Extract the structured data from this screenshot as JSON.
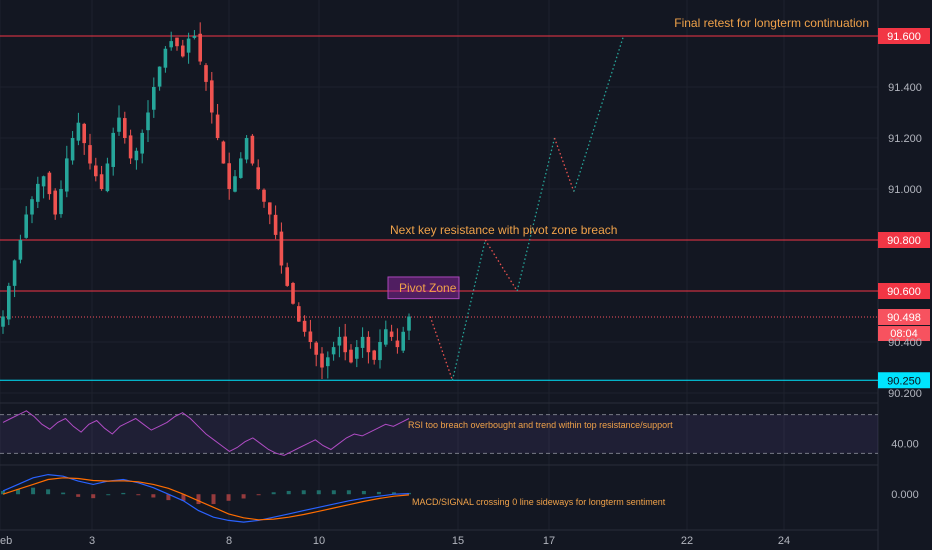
{
  "chart_data": {
    "type": "candlestick",
    "price_axis": {
      "ticks": [
        "91.400",
        "91.200",
        "91.000",
        "90.400",
        "90.200"
      ],
      "range": [
        90.17,
        91.62
      ]
    },
    "time_axis": {
      "ticks": [
        "eb",
        "3",
        "8",
        "10",
        "15",
        "17",
        "22",
        "24"
      ]
    },
    "levels": [
      {
        "value": 91.6,
        "label": "91.600",
        "color": "#f23645"
      },
      {
        "value": 90.8,
        "label": "90.800",
        "color": "#f23645"
      },
      {
        "value": 90.6,
        "label": "90.600",
        "color": "#f23645"
      },
      {
        "value": 90.25,
        "label": "90.250",
        "color": "#00e5ff"
      }
    ],
    "current_price": {
      "value": 90.498,
      "label": "90.498",
      "countdown": "08:04",
      "color": "#f7525f"
    },
    "pivot_zone": {
      "low": 90.57,
      "high": 90.655,
      "label": "Pivot Zone"
    },
    "annotations": {
      "final_retest": "Final retest for longterm continuation",
      "next_resistance": "Next key resistance with pivot zone breach",
      "rsi_note": "RSI too breach overbought and trend within top resistance/support",
      "macd_note": "MACD/SIGNAL crossing 0 line sideways for longterm sentiment"
    },
    "projected_path": [
      {
        "t": 14.0,
        "p": 90.5
      },
      {
        "t": 14.8,
        "p": 90.25
      },
      {
        "t": 15.6,
        "p": 90.8
      },
      {
        "t": 16.3,
        "p": 90.6
      },
      {
        "t": 17.2,
        "p": 91.2
      },
      {
        "t": 17.9,
        "p": 90.99
      },
      {
        "t": 19.7,
        "p": 91.6
      }
    ],
    "candles_close": [
      90.5,
      90.62,
      90.72,
      90.8,
      90.9,
      90.96,
      91.02,
      91.05,
      90.98,
      90.9,
      91.0,
      91.12,
      91.2,
      91.26,
      91.18,
      91.1,
      91.05,
      91.0,
      91.1,
      91.22,
      91.28,
      91.2,
      91.12,
      91.15,
      91.22,
      91.3,
      91.4,
      91.48,
      91.55,
      91.58,
      91.56,
      91.52,
      91.59,
      91.6,
      91.5,
      91.42,
      91.3,
      91.2,
      91.1,
      91.0,
      91.05,
      91.12,
      91.2,
      91.1,
      91.0,
      90.95,
      90.9,
      90.82,
      90.7,
      90.62,
      90.55,
      90.48,
      90.44,
      90.4,
      90.35,
      90.3,
      90.34,
      90.38,
      90.42,
      90.36,
      90.32,
      90.38,
      90.42,
      90.36,
      90.33,
      90.4,
      90.45,
      90.42,
      90.38,
      90.44,
      90.5
    ],
    "rsi": {
      "ticks": [
        "40.00"
      ],
      "upper": 70,
      "lower": 30,
      "range": [
        20,
        80
      ],
      "values": [
        62,
        66,
        70,
        74,
        68,
        60,
        55,
        62,
        66,
        58,
        52,
        60,
        64,
        56,
        50,
        58,
        62,
        66,
        60,
        54,
        58,
        62,
        68,
        72,
        66,
        58,
        50,
        44,
        38,
        32,
        36,
        42,
        46,
        40,
        34,
        30,
        28,
        32,
        36,
        40,
        44,
        38,
        34,
        40,
        46,
        50,
        48,
        52,
        56,
        60,
        58,
        62,
        66
      ]
    },
    "macd": {
      "ticks": [
        "0.000"
      ],
      "range": [
        -0.1,
        0.08
      ],
      "macd": [
        0.01,
        0.03,
        0.05,
        0.06,
        0.055,
        0.04,
        0.03,
        0.04,
        0.045,
        0.035,
        0.02,
        0.0,
        -0.02,
        -0.05,
        -0.07,
        -0.08,
        -0.085,
        -0.08,
        -0.07,
        -0.06,
        -0.05,
        -0.04,
        -0.03,
        -0.02,
        -0.012,
        -0.006,
        0.0,
        0.002
      ],
      "signal": [
        0.0,
        0.015,
        0.03,
        0.045,
        0.05,
        0.048,
        0.042,
        0.04,
        0.041,
        0.038,
        0.03,
        0.018,
        0.0,
        -0.02,
        -0.04,
        -0.06,
        -0.072,
        -0.078,
        -0.076,
        -0.07,
        -0.062,
        -0.052,
        -0.042,
        -0.032,
        -0.022,
        -0.013,
        -0.006,
        -0.002
      ]
    }
  }
}
